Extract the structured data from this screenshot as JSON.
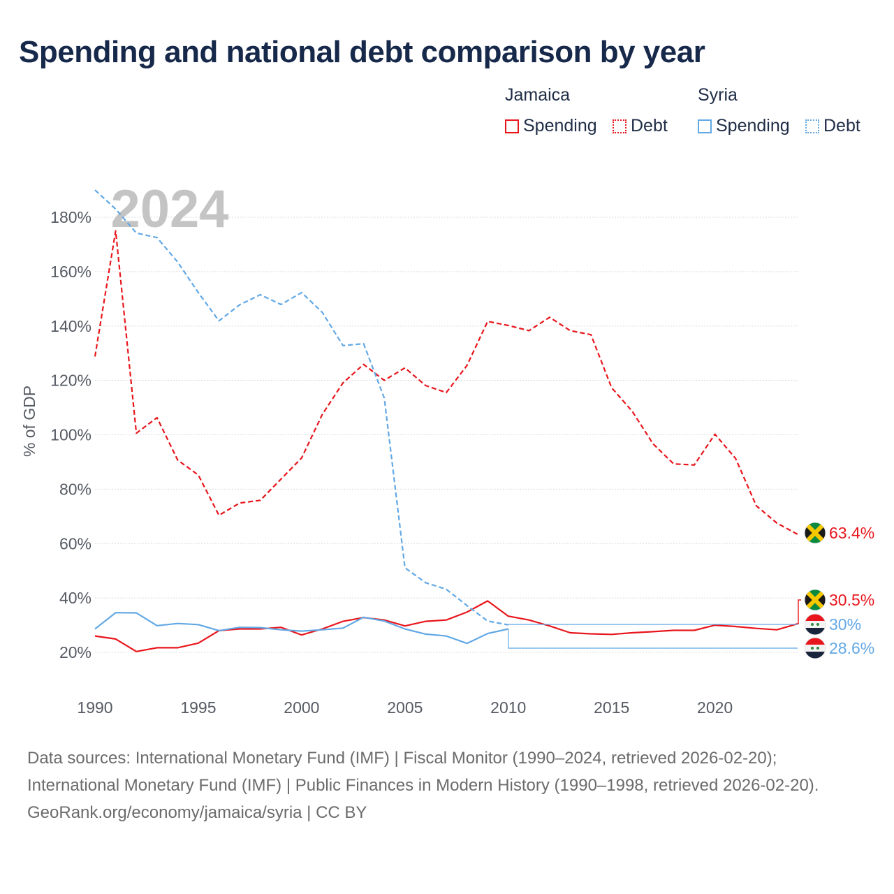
{
  "chart_data": {
    "type": "line",
    "title": "Spending and national debt comparison by year",
    "ylabel": "% of GDP",
    "xlabel": "",
    "year_watermark": "2024",
    "xlim": [
      1990,
      2024
    ],
    "ylim": [
      8,
      190
    ],
    "x_ticks": [
      1990,
      1995,
      2000,
      2005,
      2010,
      2015,
      2020
    ],
    "y_ticks": [
      20,
      40,
      60,
      80,
      100,
      120,
      140,
      160,
      180
    ],
    "legend": {
      "groups": [
        {
          "country": "Jamaica",
          "items": [
            {
              "label": "Spending",
              "style": "solid",
              "color": "#e8161c"
            },
            {
              "label": "Debt",
              "style": "dotted",
              "color": "#e8161c"
            }
          ]
        },
        {
          "country": "Syria",
          "items": [
            {
              "label": "Spending",
              "style": "solid",
              "color": "#62a8e5"
            },
            {
              "label": "Debt",
              "style": "dotted",
              "color": "#62a8e5"
            }
          ]
        }
      ]
    },
    "series": [
      {
        "name": "Jamaica Spending",
        "color": "#e8161c",
        "dash": "solid",
        "x": [
          1990,
          1991,
          1992,
          1993,
          1994,
          1995,
          1996,
          1997,
          1998,
          1999,
          2000,
          2001,
          2002,
          2003,
          2004,
          2005,
          2006,
          2007,
          2008,
          2009,
          2010,
          2011,
          2012,
          2013,
          2014,
          2015,
          2016,
          2017,
          2018,
          2019,
          2020,
          2021,
          2022,
          2023,
          2024
        ],
        "values": [
          26,
          24.9,
          20.3,
          21.7,
          21.7,
          23.4,
          28,
          28.6,
          28.6,
          29.2,
          26.4,
          28.6,
          31.4,
          32.8,
          31.9,
          29.7,
          31.4,
          31.9,
          34.8,
          38.9,
          33.3,
          31.9,
          29.7,
          27.2,
          26.8,
          26.6,
          27.2,
          27.6,
          28.1,
          28.1,
          30,
          29.5,
          28.8,
          28.3,
          30.5
        ],
        "end_label": "30.5%"
      },
      {
        "name": "Jamaica Debt",
        "color": "#e8161c",
        "dash": "dashed",
        "x": [
          1990,
          1991,
          1992,
          1993,
          1994,
          1995,
          1996,
          1997,
          1998,
          1999,
          2000,
          2001,
          2002,
          2003,
          2004,
          2005,
          2006,
          2007,
          2008,
          2009,
          2010,
          2011,
          2012,
          2013,
          2014,
          2015,
          2016,
          2017,
          2018,
          2019,
          2020,
          2021,
          2022,
          2023,
          2024
        ],
        "values": [
          128.8,
          175,
          100.6,
          106.3,
          90.7,
          85.2,
          70.4,
          74.9,
          75.9,
          83.7,
          91.5,
          107.5,
          119.1,
          125.9,
          120,
          124.6,
          118.1,
          115.5,
          125.5,
          141.7,
          140.2,
          138.3,
          143.2,
          138.3,
          136.8,
          117.3,
          108.6,
          96.7,
          89.3,
          88.9,
          100.2,
          91.3,
          73.9,
          67.5,
          63.4
        ],
        "end_label": "63.4%"
      },
      {
        "name": "Syria Spending",
        "color": "#62a8e5",
        "dash": "solid",
        "x": [
          1990,
          1991,
          1992,
          1993,
          1994,
          1995,
          1996,
          1997,
          1998,
          1999,
          2000,
          2001,
          2002,
          2003,
          2004,
          2005,
          2006,
          2007,
          2008,
          2009,
          2010
        ],
        "values": [
          28.6,
          34.6,
          34.5,
          29.8,
          30.6,
          30.2,
          28,
          29.2,
          29.1,
          28.3,
          27.8,
          28.3,
          28.9,
          32.9,
          31.5,
          28.6,
          26.7,
          26,
          23.3,
          26.9,
          28.6
        ],
        "end_label": "28.6%"
      },
      {
        "name": "Syria Debt",
        "color": "#62a8e5",
        "dash": "dashed",
        "x": [
          1990,
          1991,
          1992,
          1993,
          1994,
          1995,
          1996,
          1997,
          1998,
          1999,
          2000,
          2001,
          2002,
          2003,
          2004,
          2005,
          2006,
          2007,
          2008,
          2009,
          2010
        ],
        "values": [
          190,
          183,
          174.2,
          172.5,
          163.5,
          152.3,
          141.9,
          147.8,
          151.5,
          147.9,
          152.3,
          145,
          132.8,
          133.5,
          113.5,
          51.1,
          45.6,
          43.2,
          37.2,
          31.5,
          30.1
        ],
        "end_label": "30%"
      }
    ]
  },
  "footer": {
    "sources": "Data sources: International Monetary Fund (IMF) | Fiscal Monitor (1990–2024, retrieved 2026-02-20); International Monetary Fund (IMF) | Public Finances in Modern History (1990–1998, retrieved 2026-02-20).",
    "credit": "GeoRank.org/economy/jamaica/syria | CC BY"
  }
}
